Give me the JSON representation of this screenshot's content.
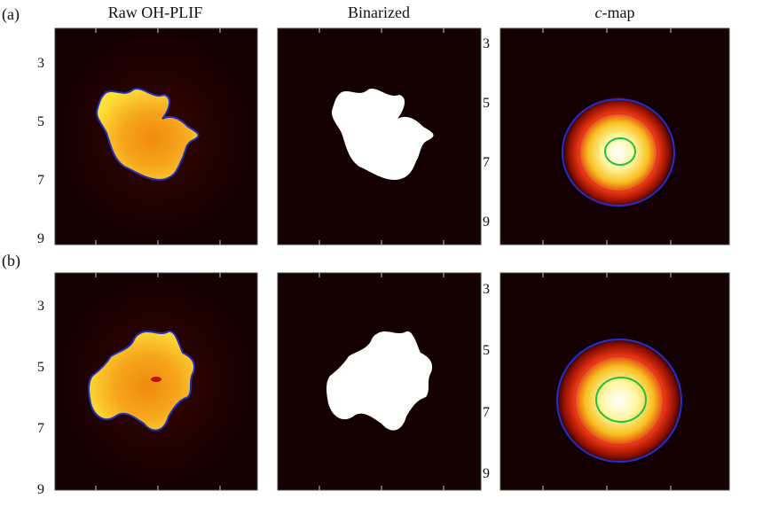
{
  "column_titles": [
    "Raw OH-PLIF",
    "Binarized",
    "c-map"
  ],
  "rows": [
    {
      "label": "(a)",
      "left_ticks": [
        3,
        5,
        7,
        9
      ],
      "right_ticks": [
        3,
        5,
        7,
        9
      ]
    },
    {
      "label": "(b)",
      "left_ticks": [
        3,
        5,
        7,
        9
      ],
      "right_ticks": [
        3,
        5,
        7,
        9
      ]
    }
  ]
}
